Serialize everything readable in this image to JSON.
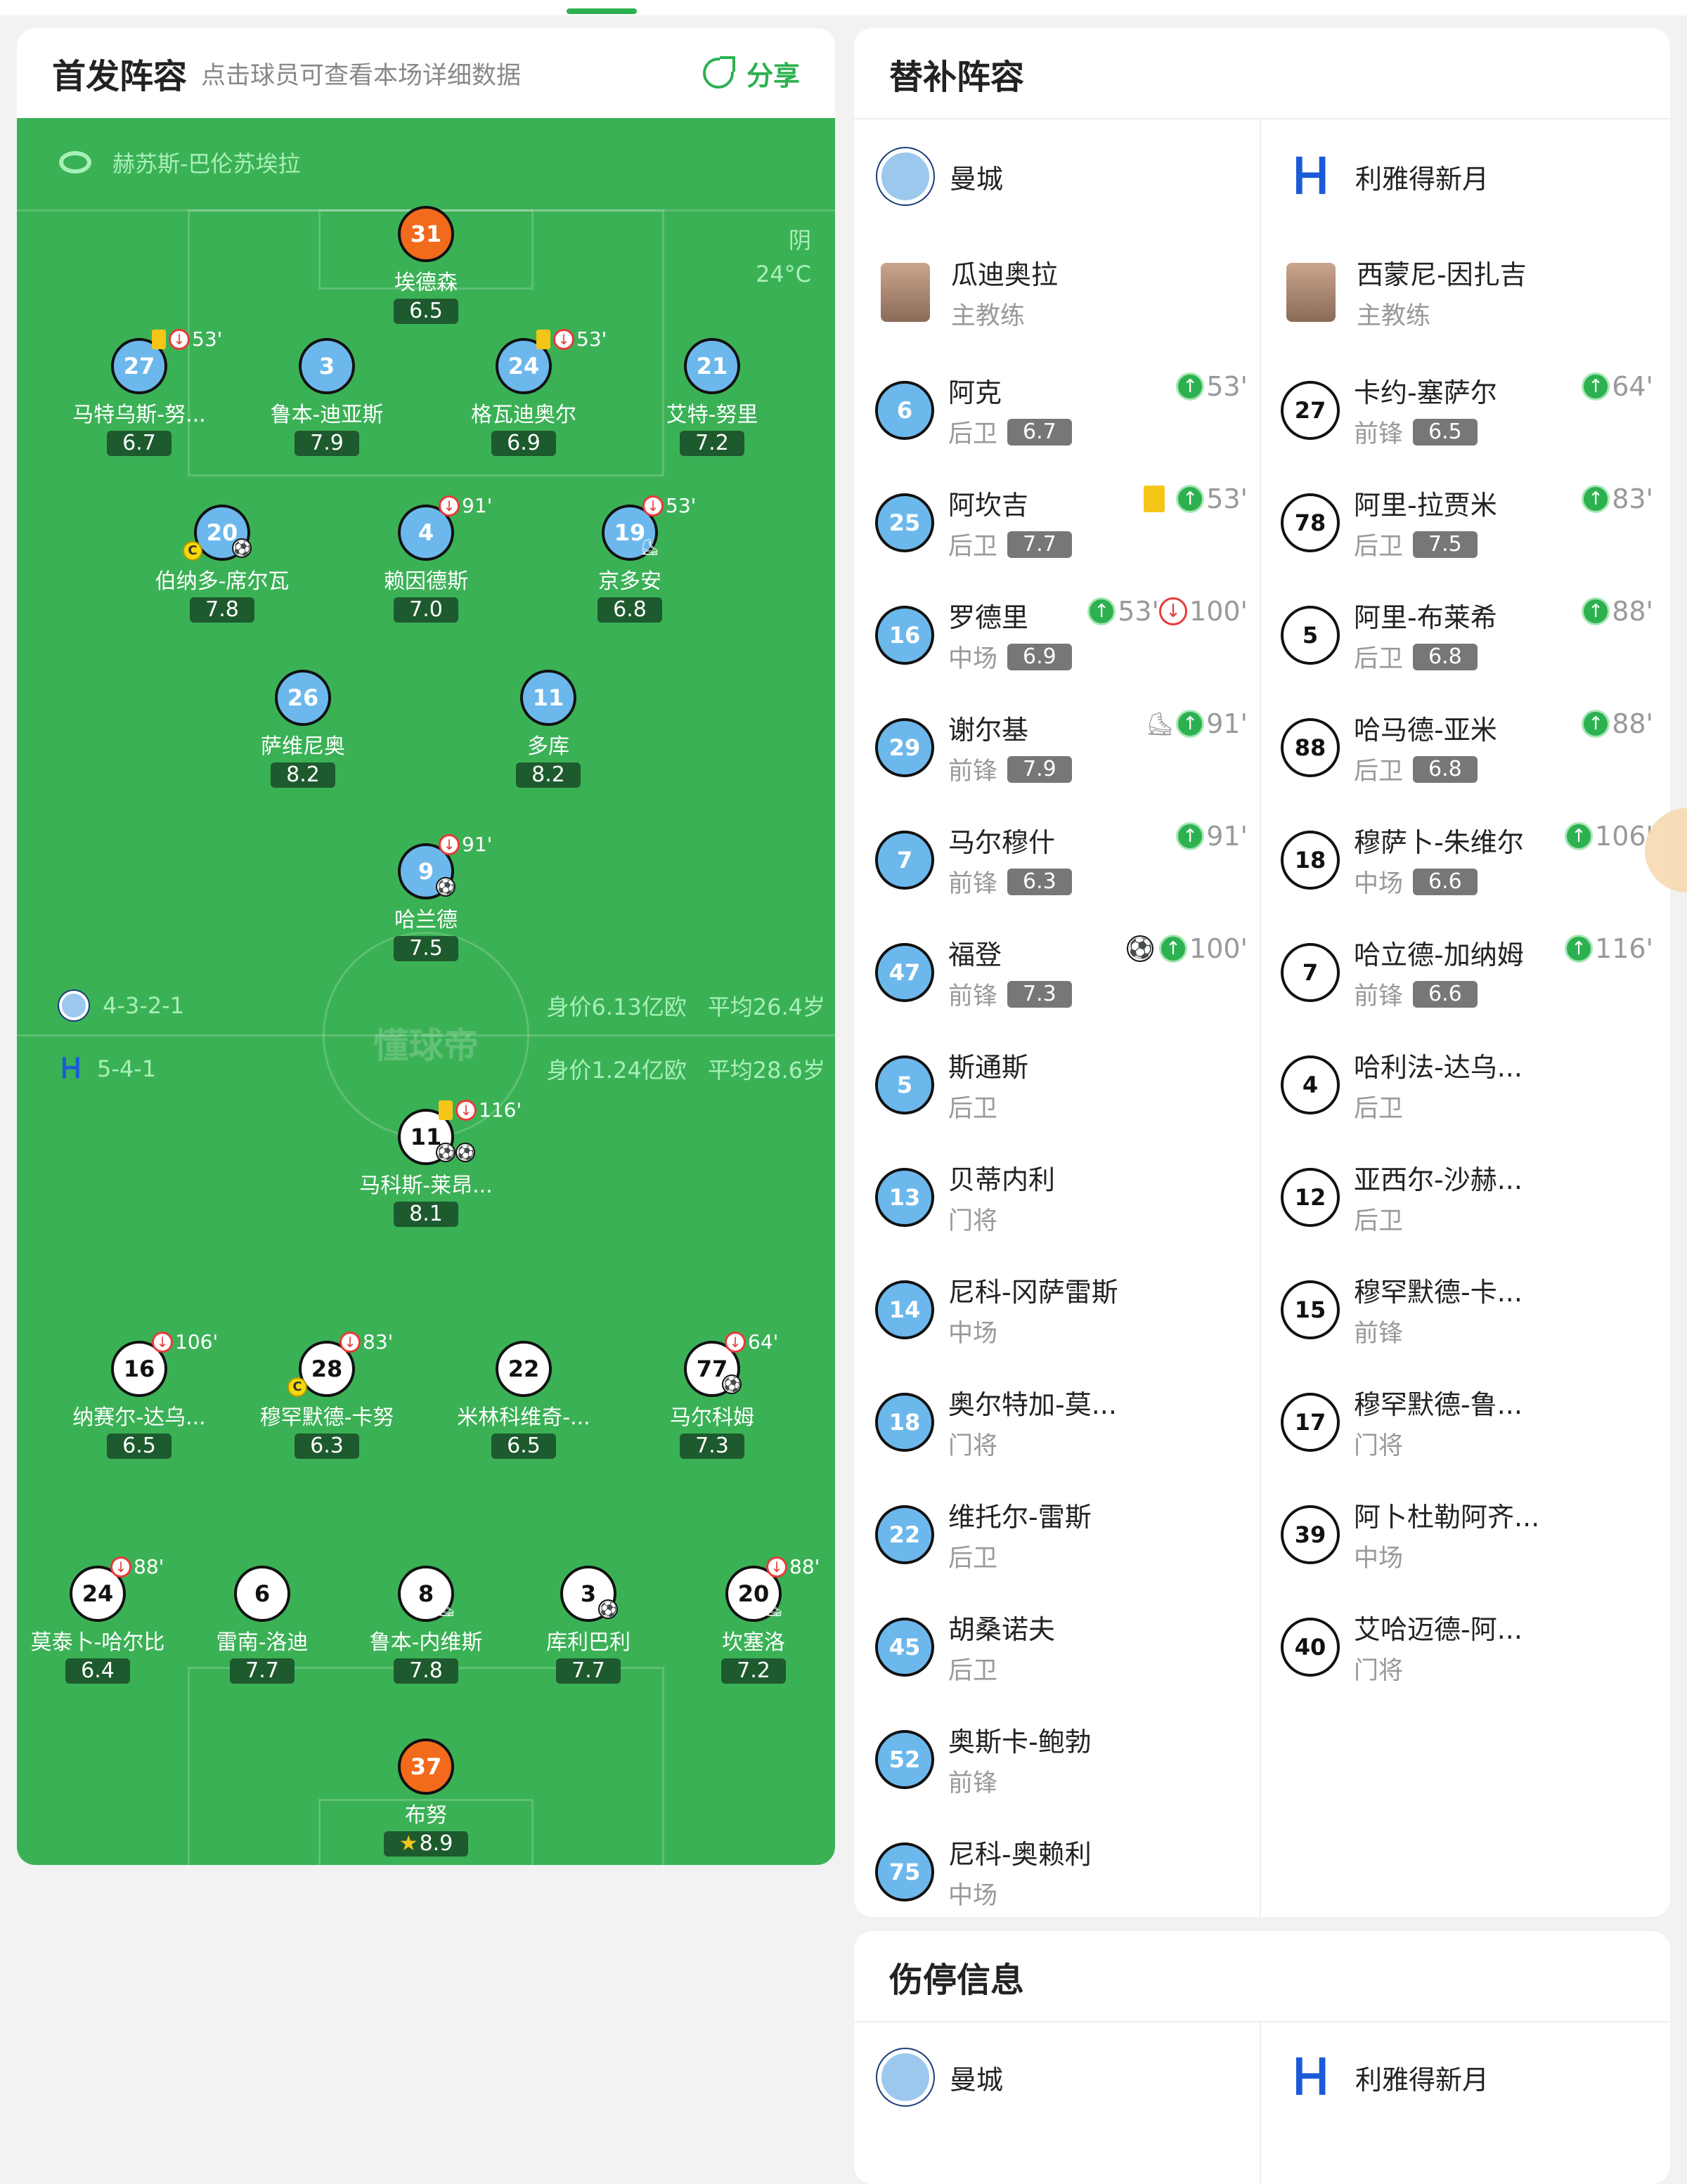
{
  "lineup": {
    "title": "首发阵容",
    "subtitle": "点击球员可查看本场详细数据",
    "share_label": "分享",
    "referee": "赫苏斯-巴伦苏埃拉",
    "weather": "阴",
    "temperature": "24°C",
    "watermark": "懂球帝",
    "home": {
      "formation": "4-3-2-1",
      "value": "身价6.13亿欧",
      "avg_age": "平均26.4岁",
      "color": "#6cb8ec"
    },
    "away": {
      "formation": "5-4-1",
      "value": "身价1.24亿欧",
      "avg_age": "平均28.6岁",
      "color": "#ffffff"
    },
    "home_players": [
      {
        "num": "31",
        "name": "埃德森",
        "rating": "6.5",
        "gk": true,
        "events": []
      },
      {
        "num": "27",
        "name": "马特乌斯-努...",
        "rating": "6.7",
        "events": [
          {
            "type": "yellow"
          },
          {
            "type": "out",
            "minute": "53'"
          }
        ]
      },
      {
        "num": "3",
        "name": "鲁本-迪亚斯",
        "rating": "7.9",
        "events": []
      },
      {
        "num": "24",
        "name": "格瓦迪奥尔",
        "rating": "6.9",
        "events": [
          {
            "type": "yellow"
          },
          {
            "type": "out",
            "minute": "53'"
          }
        ]
      },
      {
        "num": "21",
        "name": "艾特-努里",
        "rating": "7.2",
        "events": []
      },
      {
        "num": "20",
        "name": "伯纳多-席尔瓦",
        "rating": "7.8",
        "events": [
          {
            "type": "captain"
          },
          {
            "type": "goal"
          }
        ]
      },
      {
        "num": "4",
        "name": "赖因德斯",
        "rating": "7.0",
        "events": [
          {
            "type": "out",
            "minute": "91'"
          }
        ]
      },
      {
        "num": "19",
        "name": "京多安",
        "rating": "6.8",
        "events": [
          {
            "type": "out",
            "minute": "53'"
          },
          {
            "type": "assist"
          }
        ]
      },
      {
        "num": "26",
        "name": "萨维尼奥",
        "rating": "8.2",
        "events": []
      },
      {
        "num": "11",
        "name": "多库",
        "rating": "8.2",
        "events": []
      },
      {
        "num": "9",
        "name": "哈兰德",
        "rating": "7.5",
        "events": [
          {
            "type": "out",
            "minute": "91'"
          },
          {
            "type": "goal"
          }
        ]
      }
    ],
    "away_players": [
      {
        "num": "11",
        "name": "马科斯-莱昂...",
        "rating": "8.1",
        "events": [
          {
            "type": "yellow"
          },
          {
            "type": "out",
            "minute": "116'"
          },
          {
            "type": "goal"
          },
          {
            "type": "goal"
          }
        ]
      },
      {
        "num": "16",
        "name": "纳赛尔-达乌...",
        "rating": "6.5",
        "events": [
          {
            "type": "out",
            "minute": "106'"
          }
        ]
      },
      {
        "num": "28",
        "name": "穆罕默德-卡努",
        "rating": "6.3",
        "events": [
          {
            "type": "out",
            "minute": "83'"
          },
          {
            "type": "captain"
          }
        ]
      },
      {
        "num": "22",
        "name": "米林科维奇-...",
        "rating": "6.5",
        "events": []
      },
      {
        "num": "77",
        "name": "马尔科姆",
        "rating": "7.3",
        "events": [
          {
            "type": "out",
            "minute": "64'"
          },
          {
            "type": "goal"
          }
        ]
      },
      {
        "num": "24",
        "name": "莫泰卜-哈尔比",
        "rating": "6.4",
        "events": [
          {
            "type": "out",
            "minute": "88'"
          }
        ]
      },
      {
        "num": "6",
        "name": "雷南-洛迪",
        "rating": "7.7",
        "events": []
      },
      {
        "num": "8",
        "name": "鲁本-内维斯",
        "rating": "7.8",
        "events": [
          {
            "type": "assist"
          }
        ]
      },
      {
        "num": "3",
        "name": "库利巴利",
        "rating": "7.7",
        "events": [
          {
            "type": "goal"
          }
        ]
      },
      {
        "num": "20",
        "name": "坎塞洛",
        "rating": "7.2",
        "events": [
          {
            "type": "out",
            "minute": "88'"
          },
          {
            "type": "assist"
          }
        ]
      },
      {
        "num": "37",
        "name": "布努",
        "rating": "8.9",
        "gk": true,
        "mvp": true,
        "events": []
      }
    ]
  },
  "subs": {
    "title": "替补阵容",
    "home": {
      "team": "曼城",
      "coach": {
        "name": "瓜迪奥拉",
        "role": "主教练"
      },
      "players": [
        {
          "num": "6",
          "name": "阿克",
          "pos": "后卫",
          "rating": "6.7",
          "events": [
            {
              "type": "in",
              "minute": "53'"
            }
          ]
        },
        {
          "num": "25",
          "name": "阿坎吉",
          "pos": "后卫",
          "rating": "7.7",
          "events": [
            {
              "type": "yellow"
            },
            {
              "type": "in",
              "minute": "53'"
            }
          ]
        },
        {
          "num": "16",
          "name": "罗德里",
          "pos": "中场",
          "rating": "6.9",
          "events": [
            {
              "type": "in",
              "minute": "53'"
            },
            {
              "type": "out",
              "minute": "100'"
            }
          ]
        },
        {
          "num": "29",
          "name": "谢尔基",
          "pos": "前锋",
          "rating": "7.9",
          "events": [
            {
              "type": "assist"
            },
            {
              "type": "in",
              "minute": "91'"
            }
          ]
        },
        {
          "num": "7",
          "name": "马尔穆什",
          "pos": "前锋",
          "rating": "6.3",
          "events": [
            {
              "type": "in",
              "minute": "91'"
            }
          ]
        },
        {
          "num": "47",
          "name": "福登",
          "pos": "前锋",
          "rating": "7.3",
          "events": [
            {
              "type": "goal"
            },
            {
              "type": "in",
              "minute": "100'"
            }
          ]
        },
        {
          "num": "5",
          "name": "斯通斯",
          "pos": "后卫",
          "events": []
        },
        {
          "num": "13",
          "name": "贝蒂内利",
          "pos": "门将",
          "events": []
        },
        {
          "num": "14",
          "name": "尼科-冈萨雷斯",
          "pos": "中场",
          "events": []
        },
        {
          "num": "18",
          "name": "奥尔特加-莫...",
          "pos": "门将",
          "events": []
        },
        {
          "num": "22",
          "name": "维托尔-雷斯",
          "pos": "后卫",
          "events": []
        },
        {
          "num": "45",
          "name": "胡桑诺夫",
          "pos": "后卫",
          "events": []
        },
        {
          "num": "52",
          "name": "奥斯卡-鲍勃",
          "pos": "前锋",
          "events": []
        },
        {
          "num": "75",
          "name": "尼科-奥赖利",
          "pos": "中场",
          "events": []
        }
      ]
    },
    "away": {
      "team": "利雅得新月",
      "coach": {
        "name": "西蒙尼-因扎吉",
        "role": "主教练"
      },
      "players": [
        {
          "num": "27",
          "name": "卡约-塞萨尔",
          "pos": "前锋",
          "rating": "6.5",
          "events": [
            {
              "type": "in",
              "minute": "64'"
            }
          ]
        },
        {
          "num": "78",
          "name": "阿里-拉贾米",
          "pos": "后卫",
          "rating": "7.5",
          "events": [
            {
              "type": "in",
              "minute": "83'"
            }
          ]
        },
        {
          "num": "5",
          "name": "阿里-布莱希",
          "pos": "后卫",
          "rating": "6.8",
          "events": [
            {
              "type": "in",
              "minute": "88'"
            }
          ]
        },
        {
          "num": "88",
          "name": "哈马德-亚米",
          "pos": "后卫",
          "rating": "6.8",
          "events": [
            {
              "type": "in",
              "minute": "88'"
            }
          ]
        },
        {
          "num": "18",
          "name": "穆萨卜-朱维尔",
          "pos": "中场",
          "rating": "6.6",
          "events": [
            {
              "type": "in",
              "minute": "106'"
            }
          ]
        },
        {
          "num": "7",
          "name": "哈立德-加纳姆",
          "pos": "前锋",
          "rating": "6.6",
          "events": [
            {
              "type": "in",
              "minute": "116'"
            }
          ]
        },
        {
          "num": "4",
          "name": "哈利法-达乌...",
          "pos": "后卫",
          "events": []
        },
        {
          "num": "12",
          "name": "亚西尔-沙赫...",
          "pos": "后卫",
          "events": []
        },
        {
          "num": "15",
          "name": "穆罕默德-卡...",
          "pos": "前锋",
          "events": []
        },
        {
          "num": "17",
          "name": "穆罕默德-鲁...",
          "pos": "门将",
          "events": []
        },
        {
          "num": "39",
          "name": "阿卜杜勒阿齐...",
          "pos": "中场",
          "events": []
        },
        {
          "num": "40",
          "name": "艾哈迈德-阿...",
          "pos": "门将",
          "events": []
        }
      ]
    }
  },
  "injuries": {
    "title": "伤停信息",
    "home_team": "曼城",
    "away_team": "利雅得新月"
  }
}
